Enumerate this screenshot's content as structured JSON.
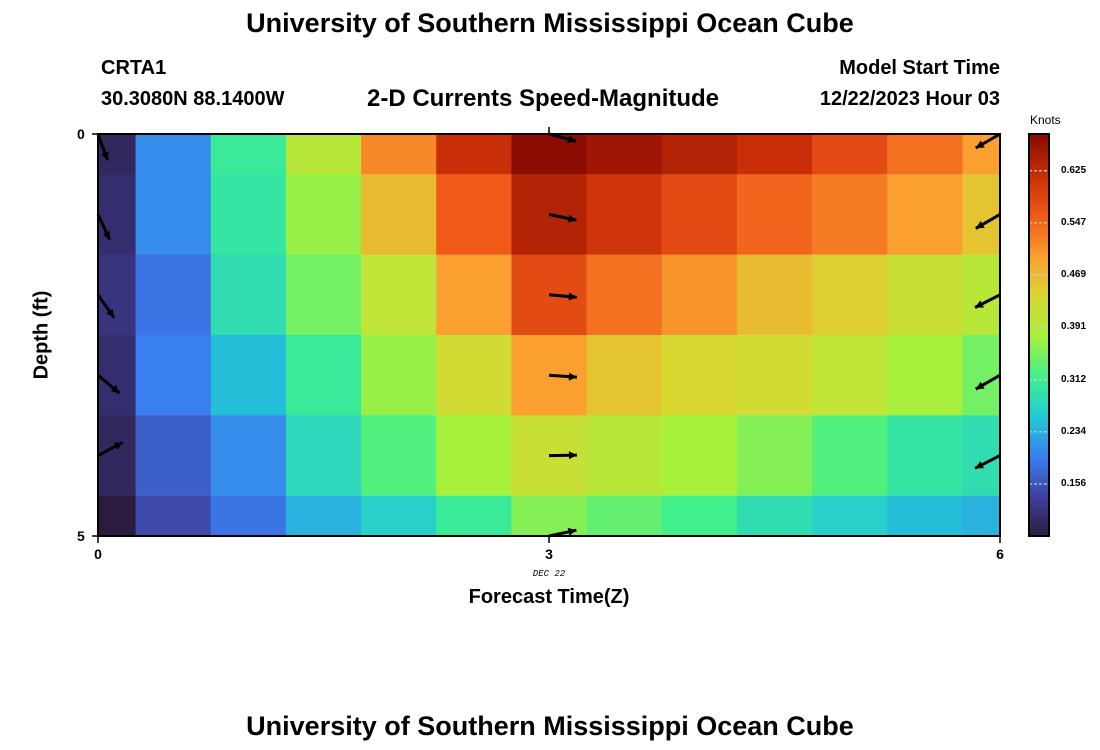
{
  "header": {
    "title": "University of Southern Mississippi Ocean Cube",
    "station_id": "CRTA1",
    "coords": "30.3080N  88.1400W",
    "model_label": "Model Start Time",
    "model_time": "12/22/2023 Hour 03",
    "footer_title": "University of Southern Mississippi Ocean Cube"
  },
  "chart_data": {
    "type": "heatmap",
    "title": "2-D Currents Speed-Magnitude",
    "xlabel": "Forecast Time(Z)",
    "ylabel": "Depth (ft)",
    "x_ticks": [
      "0",
      "3",
      "6"
    ],
    "x_range": [
      0,
      6
    ],
    "y_ticks": [
      "0",
      "5"
    ],
    "y_range": [
      0,
      5
    ],
    "date_label": "DEC 22",
    "colorbar": {
      "unit": "Knots",
      "ticks": [
        "0.625",
        "0.547",
        "0.469",
        "0.391",
        "0.312",
        "0.234",
        "0.156"
      ],
      "tick_values": [
        0.625,
        0.547,
        0.469,
        0.391,
        0.312,
        0.234,
        0.156
      ],
      "min": 0.078,
      "max": 0.68
    },
    "palette": [
      "#2a1b3c",
      "#3f3f9a",
      "#3a7df0",
      "#22c9d5",
      "#3ff08e",
      "#a6f03c",
      "#d8d832",
      "#faa030",
      "#f05a18",
      "#c82e08",
      "#8a0c02"
    ],
    "time_hours": [
      0,
      0.5,
      1,
      1.5,
      2,
      2.5,
      3,
      3.5,
      4,
      4.5,
      5,
      5.5,
      6
    ],
    "depth_rows": [
      0,
      1,
      2,
      3,
      4,
      5
    ],
    "speed": [
      [
        0.1,
        0.21,
        0.31,
        0.4,
        0.52,
        0.62,
        0.68,
        0.66,
        0.64,
        0.62,
        0.58,
        0.54,
        0.5
      ],
      [
        0.11,
        0.21,
        0.3,
        0.37,
        0.47,
        0.56,
        0.64,
        0.61,
        0.58,
        0.55,
        0.53,
        0.5,
        0.46
      ],
      [
        0.12,
        0.19,
        0.29,
        0.35,
        0.41,
        0.5,
        0.58,
        0.54,
        0.51,
        0.47,
        0.45,
        0.42,
        0.4
      ],
      [
        0.11,
        0.2,
        0.25,
        0.31,
        0.37,
        0.43,
        0.5,
        0.46,
        0.44,
        0.43,
        0.41,
        0.38,
        0.35
      ],
      [
        0.1,
        0.17,
        0.21,
        0.28,
        0.33,
        0.38,
        0.42,
        0.4,
        0.38,
        0.36,
        0.33,
        0.3,
        0.29
      ],
      [
        0.08,
        0.15,
        0.19,
        0.24,
        0.27,
        0.31,
        0.36,
        0.34,
        0.32,
        0.29,
        0.27,
        0.25,
        0.24
      ]
    ],
    "vectors": [
      {
        "t": 0,
        "depth": 0,
        "angle_deg": 70
      },
      {
        "t": 0,
        "depth": 1,
        "angle_deg": 65
      },
      {
        "t": 0,
        "depth": 2,
        "angle_deg": 55
      },
      {
        "t": 0,
        "depth": 3,
        "angle_deg": 40
      },
      {
        "t": 0,
        "depth": 4,
        "angle_deg": -28
      },
      {
        "t": 3,
        "depth": 0,
        "angle_deg": 15
      },
      {
        "t": 3,
        "depth": 1,
        "angle_deg": 12
      },
      {
        "t": 3,
        "depth": 2,
        "angle_deg": 5
      },
      {
        "t": 3,
        "depth": 3,
        "angle_deg": 4
      },
      {
        "t": 3,
        "depth": 4,
        "angle_deg": -1
      },
      {
        "t": 3,
        "depth": 5,
        "angle_deg": -12
      },
      {
        "t": 6,
        "depth": 0,
        "angle_deg": 150
      },
      {
        "t": 6,
        "depth": 1,
        "angle_deg": 150
      },
      {
        "t": 6,
        "depth": 2,
        "angle_deg": 153
      },
      {
        "t": 6,
        "depth": 3,
        "angle_deg": 150
      },
      {
        "t": 6,
        "depth": 4,
        "angle_deg": 153
      }
    ]
  }
}
